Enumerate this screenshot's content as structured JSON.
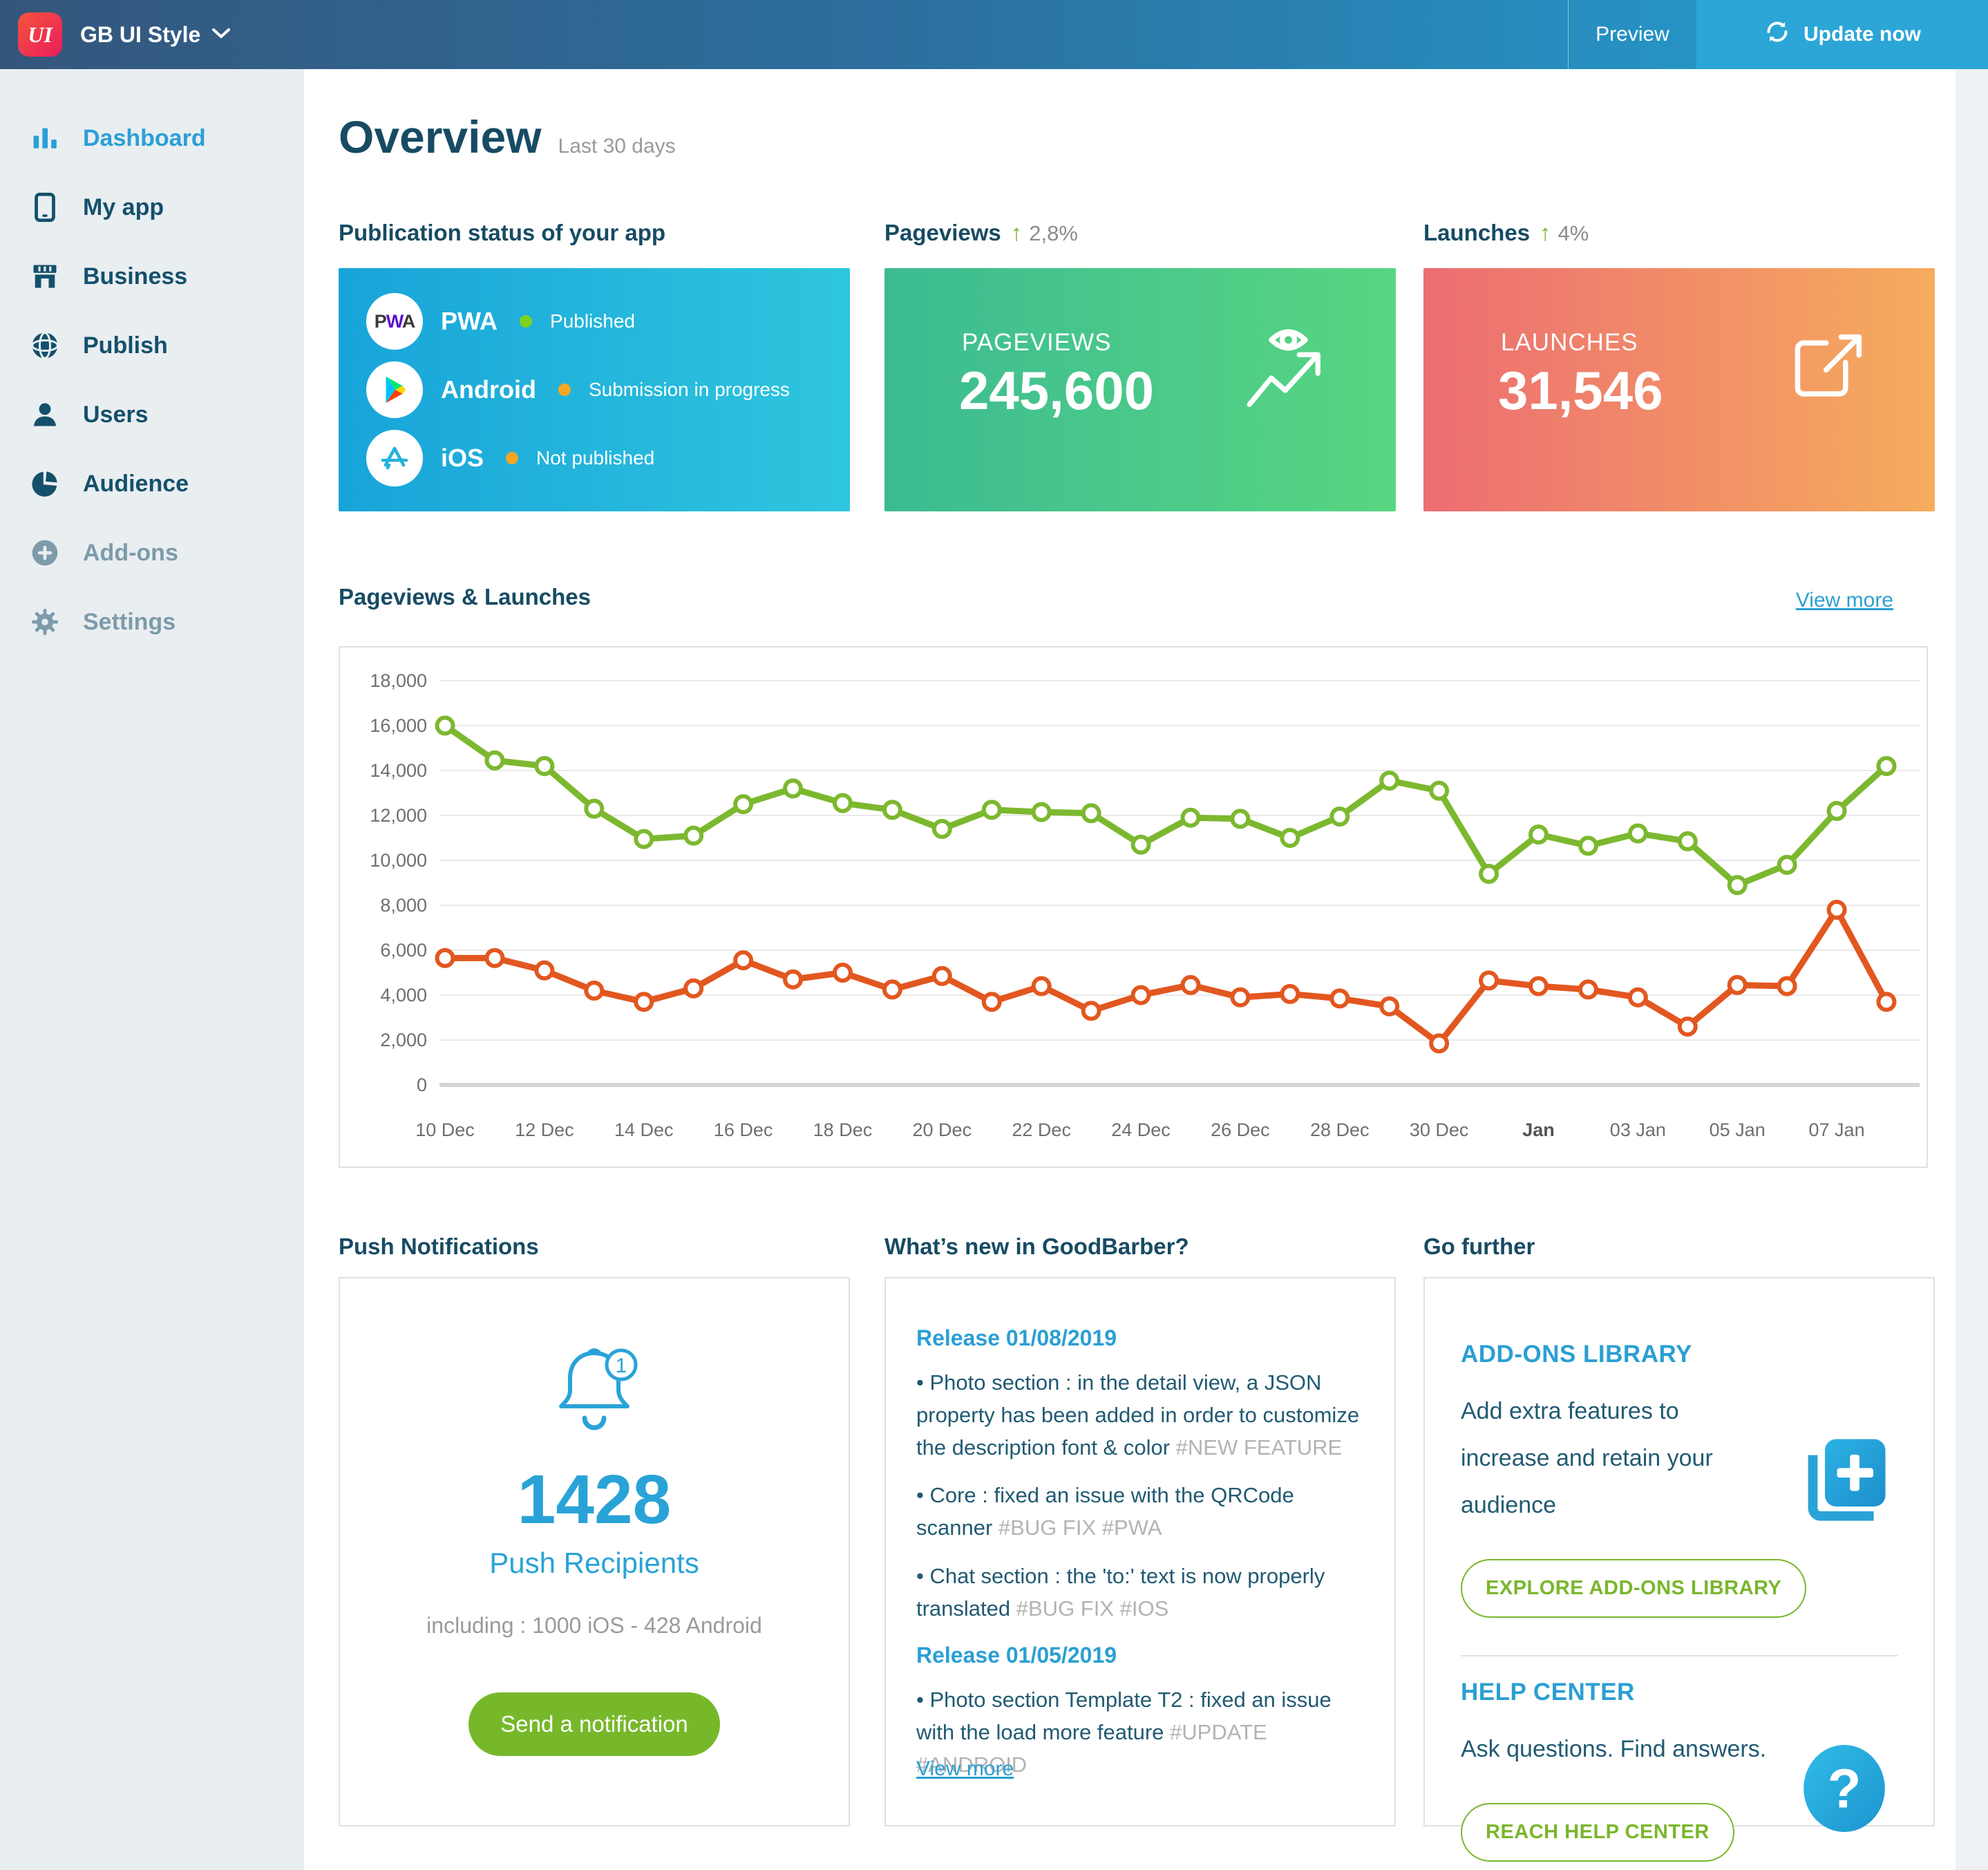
{
  "topbar": {
    "app_initials": "UI",
    "app_name": "GB UI Style",
    "preview_label": "Preview",
    "update_label": "Update now"
  },
  "sidebar": {
    "items": [
      {
        "label": "Dashboard",
        "icon": "bar-chart-icon",
        "state": "active"
      },
      {
        "label": "My app",
        "icon": "phone-icon",
        "state": "normal"
      },
      {
        "label": "Business",
        "icon": "storefront-icon",
        "state": "normal"
      },
      {
        "label": "Publish",
        "icon": "globe-icon",
        "state": "normal"
      },
      {
        "label": "Users",
        "icon": "user-icon",
        "state": "normal"
      },
      {
        "label": "Audience",
        "icon": "pie-chart-icon",
        "state": "normal"
      },
      {
        "label": "Add-ons",
        "icon": "plus-circle-icon",
        "state": "muted"
      },
      {
        "label": "Settings",
        "icon": "gear-icon",
        "state": "muted"
      }
    ]
  },
  "overview": {
    "title": "Overview",
    "subtitle": "Last 30 days"
  },
  "publication": {
    "header": "Publication status of your app",
    "rows": [
      {
        "platform": "PWA",
        "status": "Published",
        "dot_color": "#7ed321"
      },
      {
        "platform": "Android",
        "status": "Submission in progress",
        "dot_color": "#f5a623"
      },
      {
        "platform": "iOS",
        "status": "Not published",
        "dot_color": "#f5a623"
      }
    ]
  },
  "stats": [
    {
      "header": "Pageviews",
      "delta": "2,8%",
      "card_label": "PAGEVIEWS",
      "card_value": "245,600",
      "icon": "eye-trend-icon",
      "gradient": [
        "#3cbb92",
        "#58d681"
      ]
    },
    {
      "header": "Launches",
      "delta": "4%",
      "card_label": "LAUNCHES",
      "card_value": "31,546",
      "icon": "external-link-icon",
      "gradient": [
        "#ec6d72",
        "#f6ac5d"
      ]
    }
  ],
  "chart_section": {
    "header": "Pageviews & Launches",
    "view_more": "View more"
  },
  "chart_data": {
    "type": "line",
    "title": "Pageviews & Launches",
    "x": [
      "10 Dec",
      "11 Dec",
      "12 Dec",
      "13 Dec",
      "14 Dec",
      "15 Dec",
      "16 Dec",
      "17 Dec",
      "18 Dec",
      "19 Dec",
      "20 Dec",
      "21 Dec",
      "22 Dec",
      "23 Dec",
      "24 Dec",
      "25 Dec",
      "26 Dec",
      "27 Dec",
      "28 Dec",
      "29 Dec",
      "30 Dec",
      "31 Dec",
      "01 Jan",
      "02 Jan",
      "03 Jan",
      "04 Jan",
      "05 Jan",
      "06 Jan",
      "07 Jan",
      "08 Jan"
    ],
    "x_tick_labels": [
      "10 Dec",
      "12 Dec",
      "14 Dec",
      "16 Dec",
      "18 Dec",
      "20 Dec",
      "22 Dec",
      "24 Dec",
      "26 Dec",
      "28 Dec",
      "30 Dec",
      "Jan",
      "03 Jan",
      "05 Jan",
      "07 Jan"
    ],
    "tick_every": 2,
    "bold_tick": "Jan",
    "ylim": [
      0,
      18000
    ],
    "y_tick_step": 2000,
    "grid": true,
    "legend": "none",
    "series": [
      {
        "name": "Pageviews",
        "color": "#7cb82f",
        "values": [
          16000,
          14450,
          14200,
          12300,
          10950,
          11100,
          12500,
          13200,
          12550,
          12250,
          11400,
          12250,
          12150,
          12100,
          10700,
          11900,
          11850,
          11000,
          11950,
          13550,
          13100,
          9400,
          11150,
          10650,
          11200,
          10850,
          8900,
          9800,
          12200,
          14200
        ]
      },
      {
        "name": "Launches",
        "color": "#e2571f",
        "values": [
          5650,
          5650,
          5100,
          4200,
          3700,
          4300,
          5550,
          4700,
          5000,
          4250,
          4850,
          3700,
          4400,
          3300,
          4000,
          4450,
          3900,
          4050,
          3850,
          3500,
          1850,
          4650,
          4400,
          4250,
          3900,
          2600,
          4450,
          4400,
          7800,
          3700
        ]
      }
    ]
  },
  "push": {
    "header": "Push Notifications",
    "badge": "1",
    "count": "1428",
    "count_label": "Push Recipients",
    "including": "including : 1000 iOS - 428 Android",
    "button": "Send a notification"
  },
  "whatsnew": {
    "header": "What’s new in GoodBarber?",
    "releases": [
      {
        "date": "Release 01/08/2019",
        "items": [
          {
            "text": "Photo section : in the detail view, a JSON property has been added in order to customize the description font & color",
            "tags": "#NEW FEATURE"
          },
          {
            "text": "Core : fixed an issue with the QRCode scanner",
            "tags": "#BUG FIX #PWA"
          },
          {
            "text": "Chat section : the 'to:' text is now properly translated",
            "tags": "#BUG FIX #IOS"
          }
        ]
      },
      {
        "date": "Release 01/05/2019",
        "items": [
          {
            "text": "Photo section Template T2 : fixed an issue with the load more feature",
            "tags": "#UPDATE #ANDROID"
          }
        ]
      }
    ],
    "view_more": "View more"
  },
  "gofurther": {
    "header": "Go further",
    "addons": {
      "title": "ADD-ONS LIBRARY",
      "text": "Add extra features to increase and retain your audience",
      "button": "EXPLORE ADD-ONS LIBRARY",
      "icon": "addons-library-icon"
    },
    "help": {
      "title": "HELP CENTER",
      "text": "Ask questions. Find answers.",
      "button": "REACH HELP CENTER",
      "icon": "question-mark-icon"
    }
  },
  "colors": {
    "accent_blue": "#2b9fd3",
    "navy": "#174b63",
    "green_button": "#77b82b",
    "line_green": "#7cb82f",
    "line_orange": "#e2571f",
    "published_dot": "#7ed321",
    "pending_dot": "#f5a623"
  }
}
